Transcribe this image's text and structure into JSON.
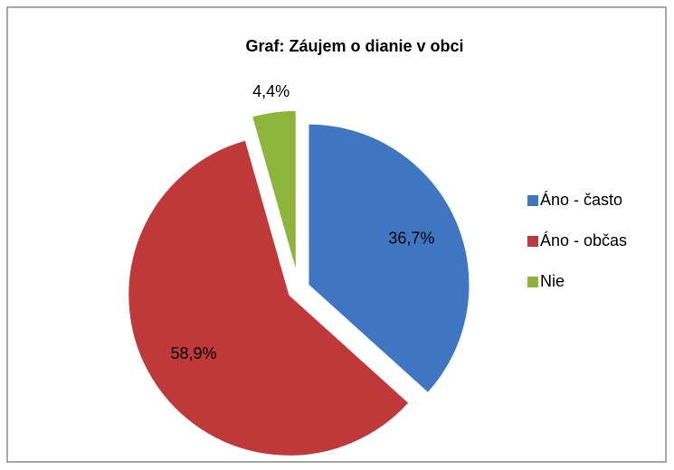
{
  "chart_data": {
    "type": "pie",
    "title": "Graf: Záujem o dianie v obci",
    "categories": [
      "Áno - často",
      "Áno -  občas",
      "Nie"
    ],
    "values": [
      36.7,
      58.9,
      4.4
    ],
    "value_labels": [
      "36,7%",
      "58,9%",
      "4,4%"
    ],
    "colors": [
      "#3f76c2",
      "#c0393a",
      "#8db53c"
    ],
    "legend": "right"
  }
}
